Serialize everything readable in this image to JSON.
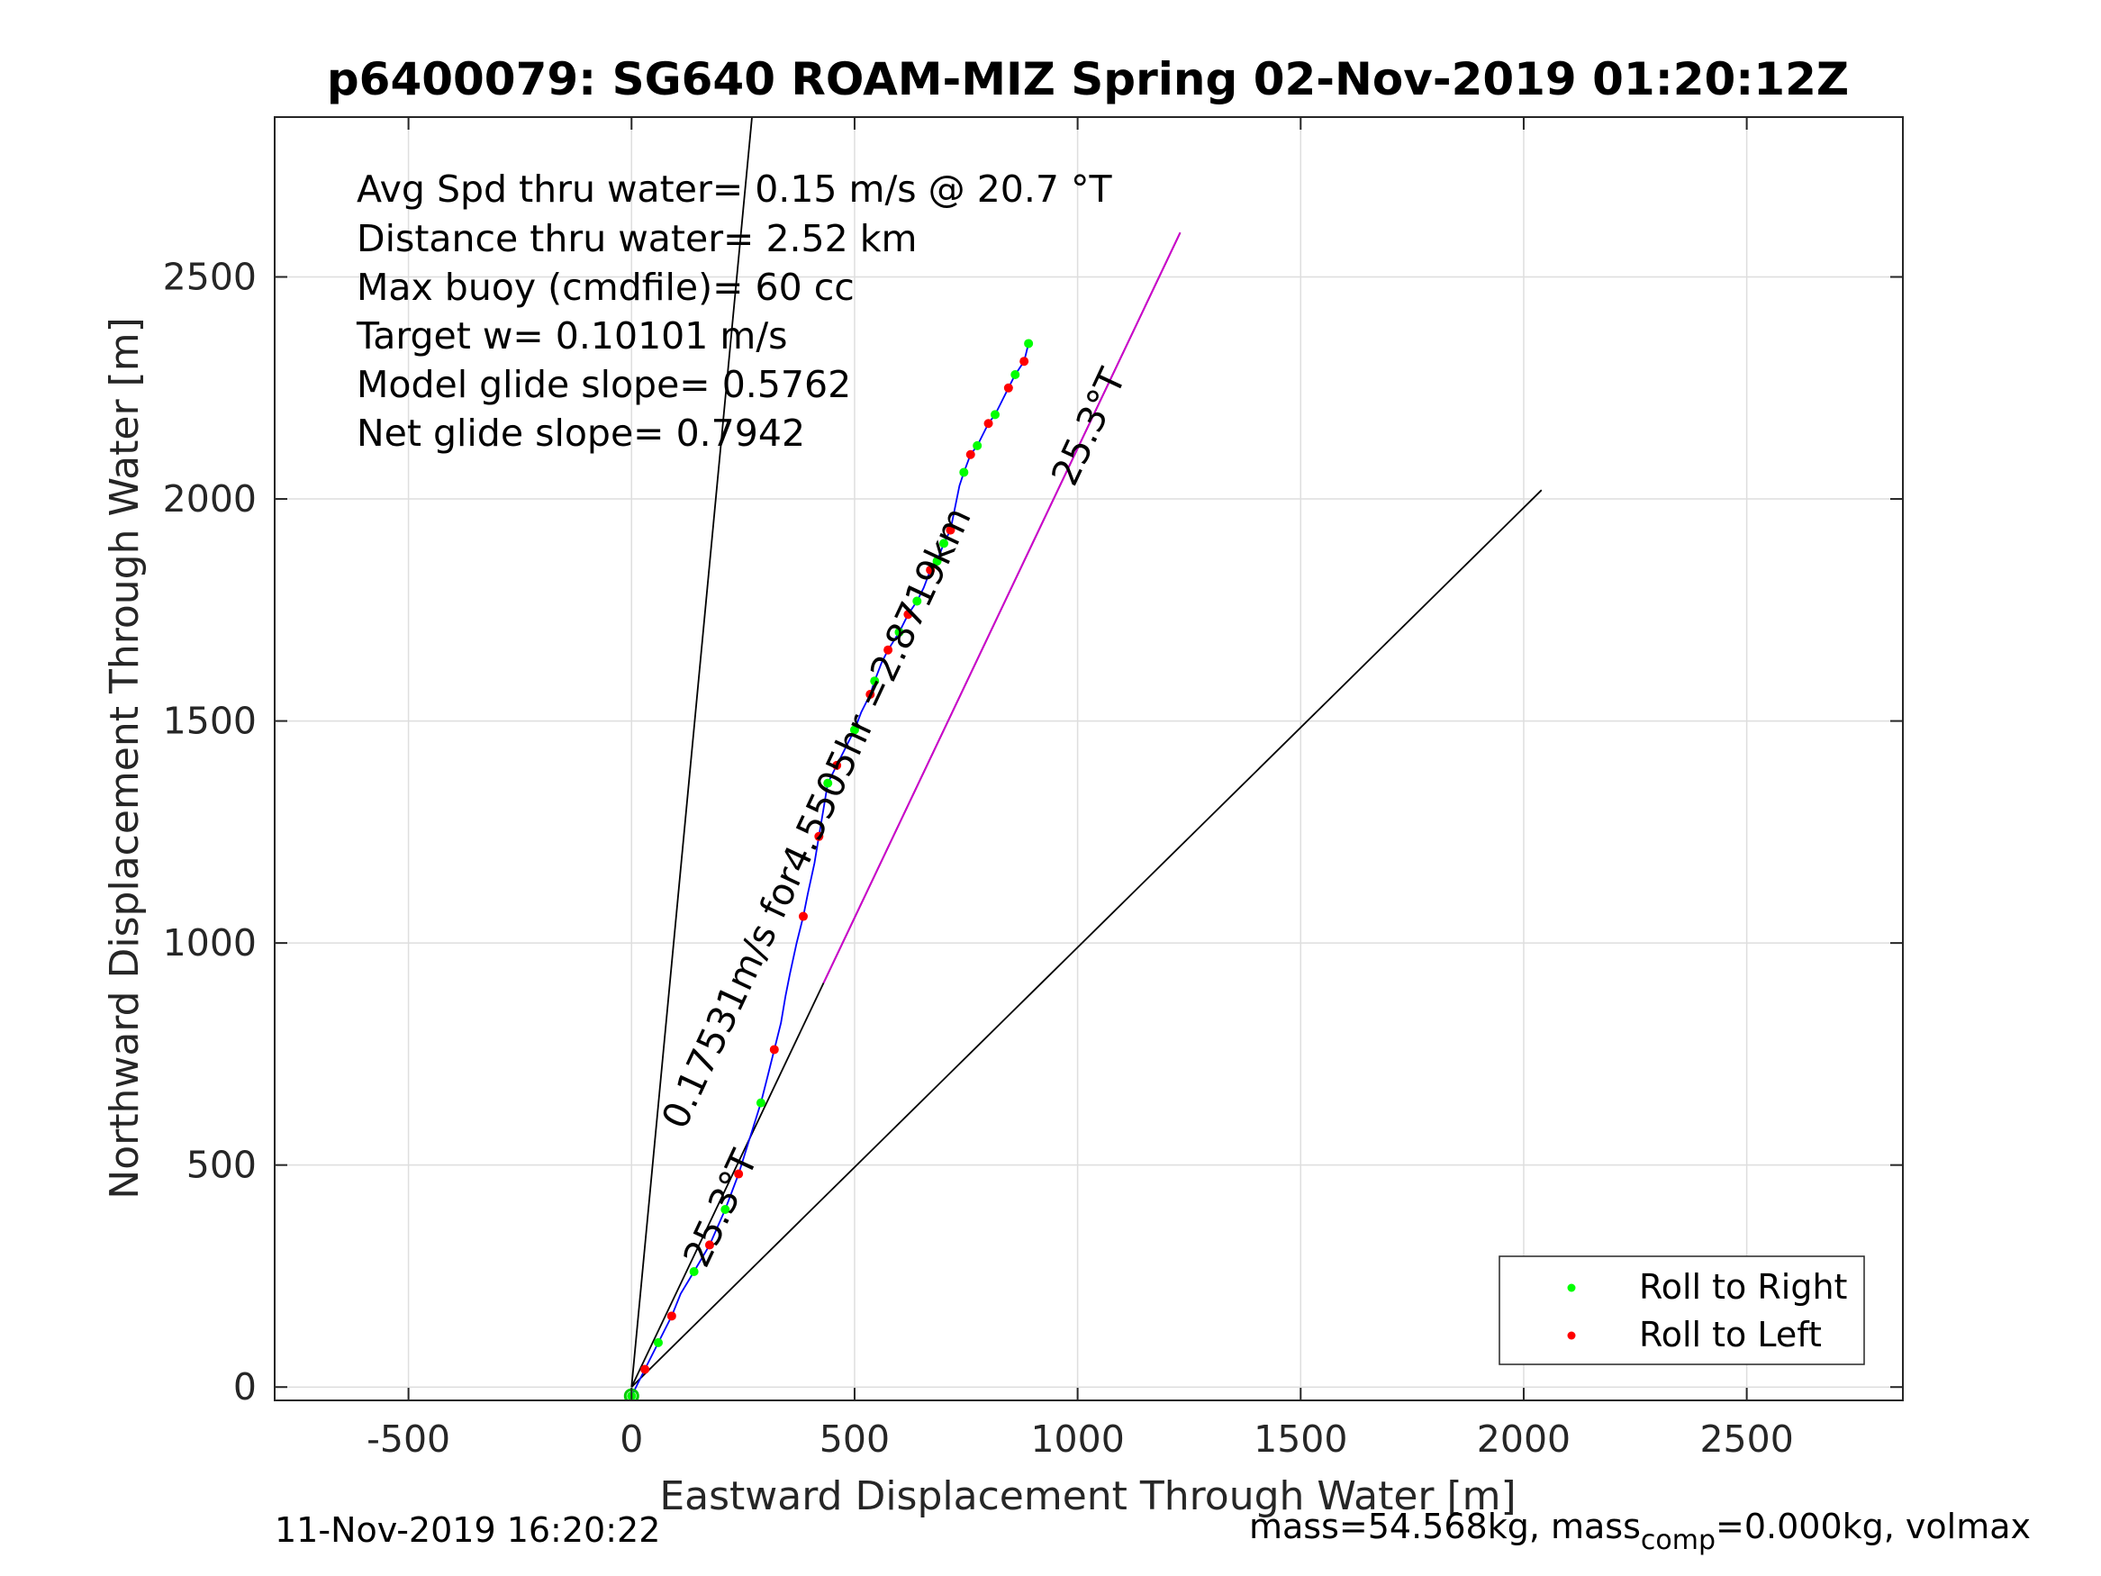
{
  "chart_data": {
    "type": "line",
    "title": "p6400079: SG640 ROAM-MIZ Spring 02-Nov-2019 01:20:12Z",
    "xlabel": "Eastward Displacement Through Water [m]",
    "ylabel": "Northward Displacement Through Water [m]",
    "xlim": [
      -800,
      2850
    ],
    "ylim": [
      -30,
      2860
    ],
    "xticks": [
      -500,
      0,
      500,
      1000,
      1500,
      2000,
      2500
    ],
    "yticks": [
      0,
      500,
      1000,
      1500,
      2000,
      2500
    ],
    "grid": true,
    "legend_position": "bottom-right",
    "info_lines": [
      "Avg Spd thru water=  0.15 m/s @  20.7 °T",
      "Distance thru water=  2.52 km",
      "Max buoy (cmdfile)= 60 cc",
      "Target w= 0.10101 m/s",
      "Model glide slope= 0.5762",
      "Net glide slope= 0.7942"
    ],
    "track": {
      "x": [
        0,
        30,
        60,
        90,
        110,
        140,
        175,
        210,
        240,
        265,
        290,
        305,
        320,
        335,
        345,
        355,
        370,
        385,
        395,
        410,
        420,
        430,
        440,
        460,
        480,
        500,
        515,
        535,
        545,
        560,
        575,
        600,
        620,
        640,
        655,
        670,
        685,
        700,
        715,
        725,
        735,
        745,
        760,
        775,
        790,
        800,
        815,
        830,
        845,
        860,
        880,
        890
      ],
      "y": [
        -20,
        40,
        100,
        160,
        210,
        260,
        320,
        400,
        480,
        560,
        640,
        700,
        760,
        820,
        880,
        930,
        1000,
        1060,
        1110,
        1180,
        1240,
        1300,
        1360,
        1400,
        1440,
        1480,
        1520,
        1560,
        1590,
        1630,
        1660,
        1700,
        1740,
        1770,
        1800,
        1840,
        1860,
        1900,
        1930,
        1980,
        2030,
        2060,
        2100,
        2120,
        2150,
        2170,
        2190,
        2220,
        2250,
        2280,
        2310,
        2350
      ]
    },
    "roll_right": {
      "x": [
        0,
        60,
        140,
        210,
        290,
        440,
        500,
        545,
        600,
        640,
        685,
        700,
        745,
        775,
        815,
        860,
        890
      ],
      "y": [
        -20,
        100,
        260,
        400,
        640,
        1360,
        1480,
        1590,
        1700,
        1770,
        1860,
        1900,
        2060,
        2120,
        2190,
        2280,
        2350
      ]
    },
    "roll_left": {
      "x": [
        30,
        90,
        175,
        240,
        320,
        385,
        420,
        460,
        535,
        575,
        620,
        670,
        715,
        760,
        800,
        845,
        880
      ],
      "y": [
        40,
        160,
        320,
        480,
        760,
        1060,
        1240,
        1400,
        1560,
        1660,
        1740,
        1840,
        1930,
        2100,
        2170,
        2250,
        2310
      ]
    },
    "reference_lines": [
      {
        "x": [
          0,
          270
        ],
        "y": [
          0,
          2860
        ]
      },
      {
        "x": [
          0,
          1230
        ],
        "y": [
          0,
          2600
        ]
      },
      {
        "x": [
          0,
          2040
        ],
        "y": [
          0,
          2020
        ]
      }
    ],
    "annotations": [
      {
        "text": "25.3°T",
        "x": 1050,
        "y": 2150,
        "angle": -65
      },
      {
        "text": "0.17531m/s for4.5505hr =2.8719km",
        "x": 440,
        "y": 1270,
        "angle": -65
      },
      {
        "text": "25.3°T",
        "x": 225,
        "y": 390,
        "angle": -65
      }
    ],
    "legend": [
      {
        "label": "Roll to Right",
        "color": "#00ff00"
      },
      {
        "label": "Roll to Left",
        "color": "#ff0000"
      }
    ],
    "colors": {
      "track": "#0000ff",
      "heading": "#cc00cc",
      "reference": "#000000"
    }
  },
  "footer": {
    "timestamp": "11-Nov-2019 16:20:22",
    "mass_prefix": "mass=54.568kg, mass",
    "mass_sub": "comp",
    "mass_suffix": "=0.000kg, volmax"
  }
}
